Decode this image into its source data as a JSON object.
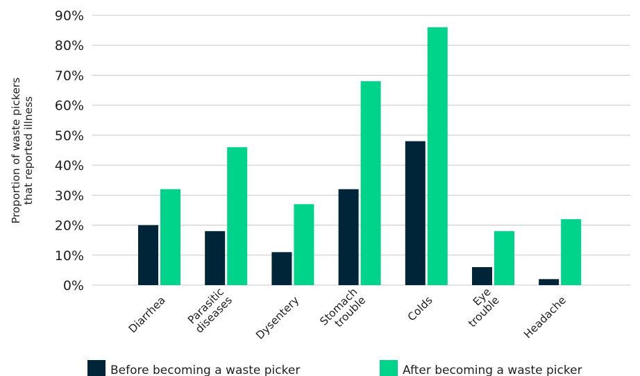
{
  "chart_data": {
    "type": "bar",
    "categories": [
      [
        "Diarrhea"
      ],
      [
        "Parasitic",
        "diseases"
      ],
      [
        "Dysentery"
      ],
      [
        "Stomach",
        "trouble"
      ],
      [
        "Colds"
      ],
      [
        "Eye",
        "trouble"
      ],
      [
        "Headache"
      ]
    ],
    "series": [
      {
        "name": "Before becoming a waste picker",
        "color": "#002538",
        "values": [
          0.2,
          0.18,
          0.11,
          0.32,
          0.48,
          0.06,
          0.02
        ]
      },
      {
        "name": "After becoming a waste picker",
        "color": "#00d48a",
        "values": [
          0.32,
          0.46,
          0.27,
          0.68,
          0.86,
          0.18,
          0.22
        ]
      }
    ],
    "ylabel": [
      "Proportion of waste pickers",
      "that reported illness"
    ],
    "yticks": [
      "0%",
      "10%",
      "20%",
      "30%",
      "40%",
      "50%",
      "60%",
      "70%",
      "80%",
      "90%"
    ],
    "ylim": [
      0,
      0.9
    ],
    "grid": true,
    "legend": "bottom"
  }
}
